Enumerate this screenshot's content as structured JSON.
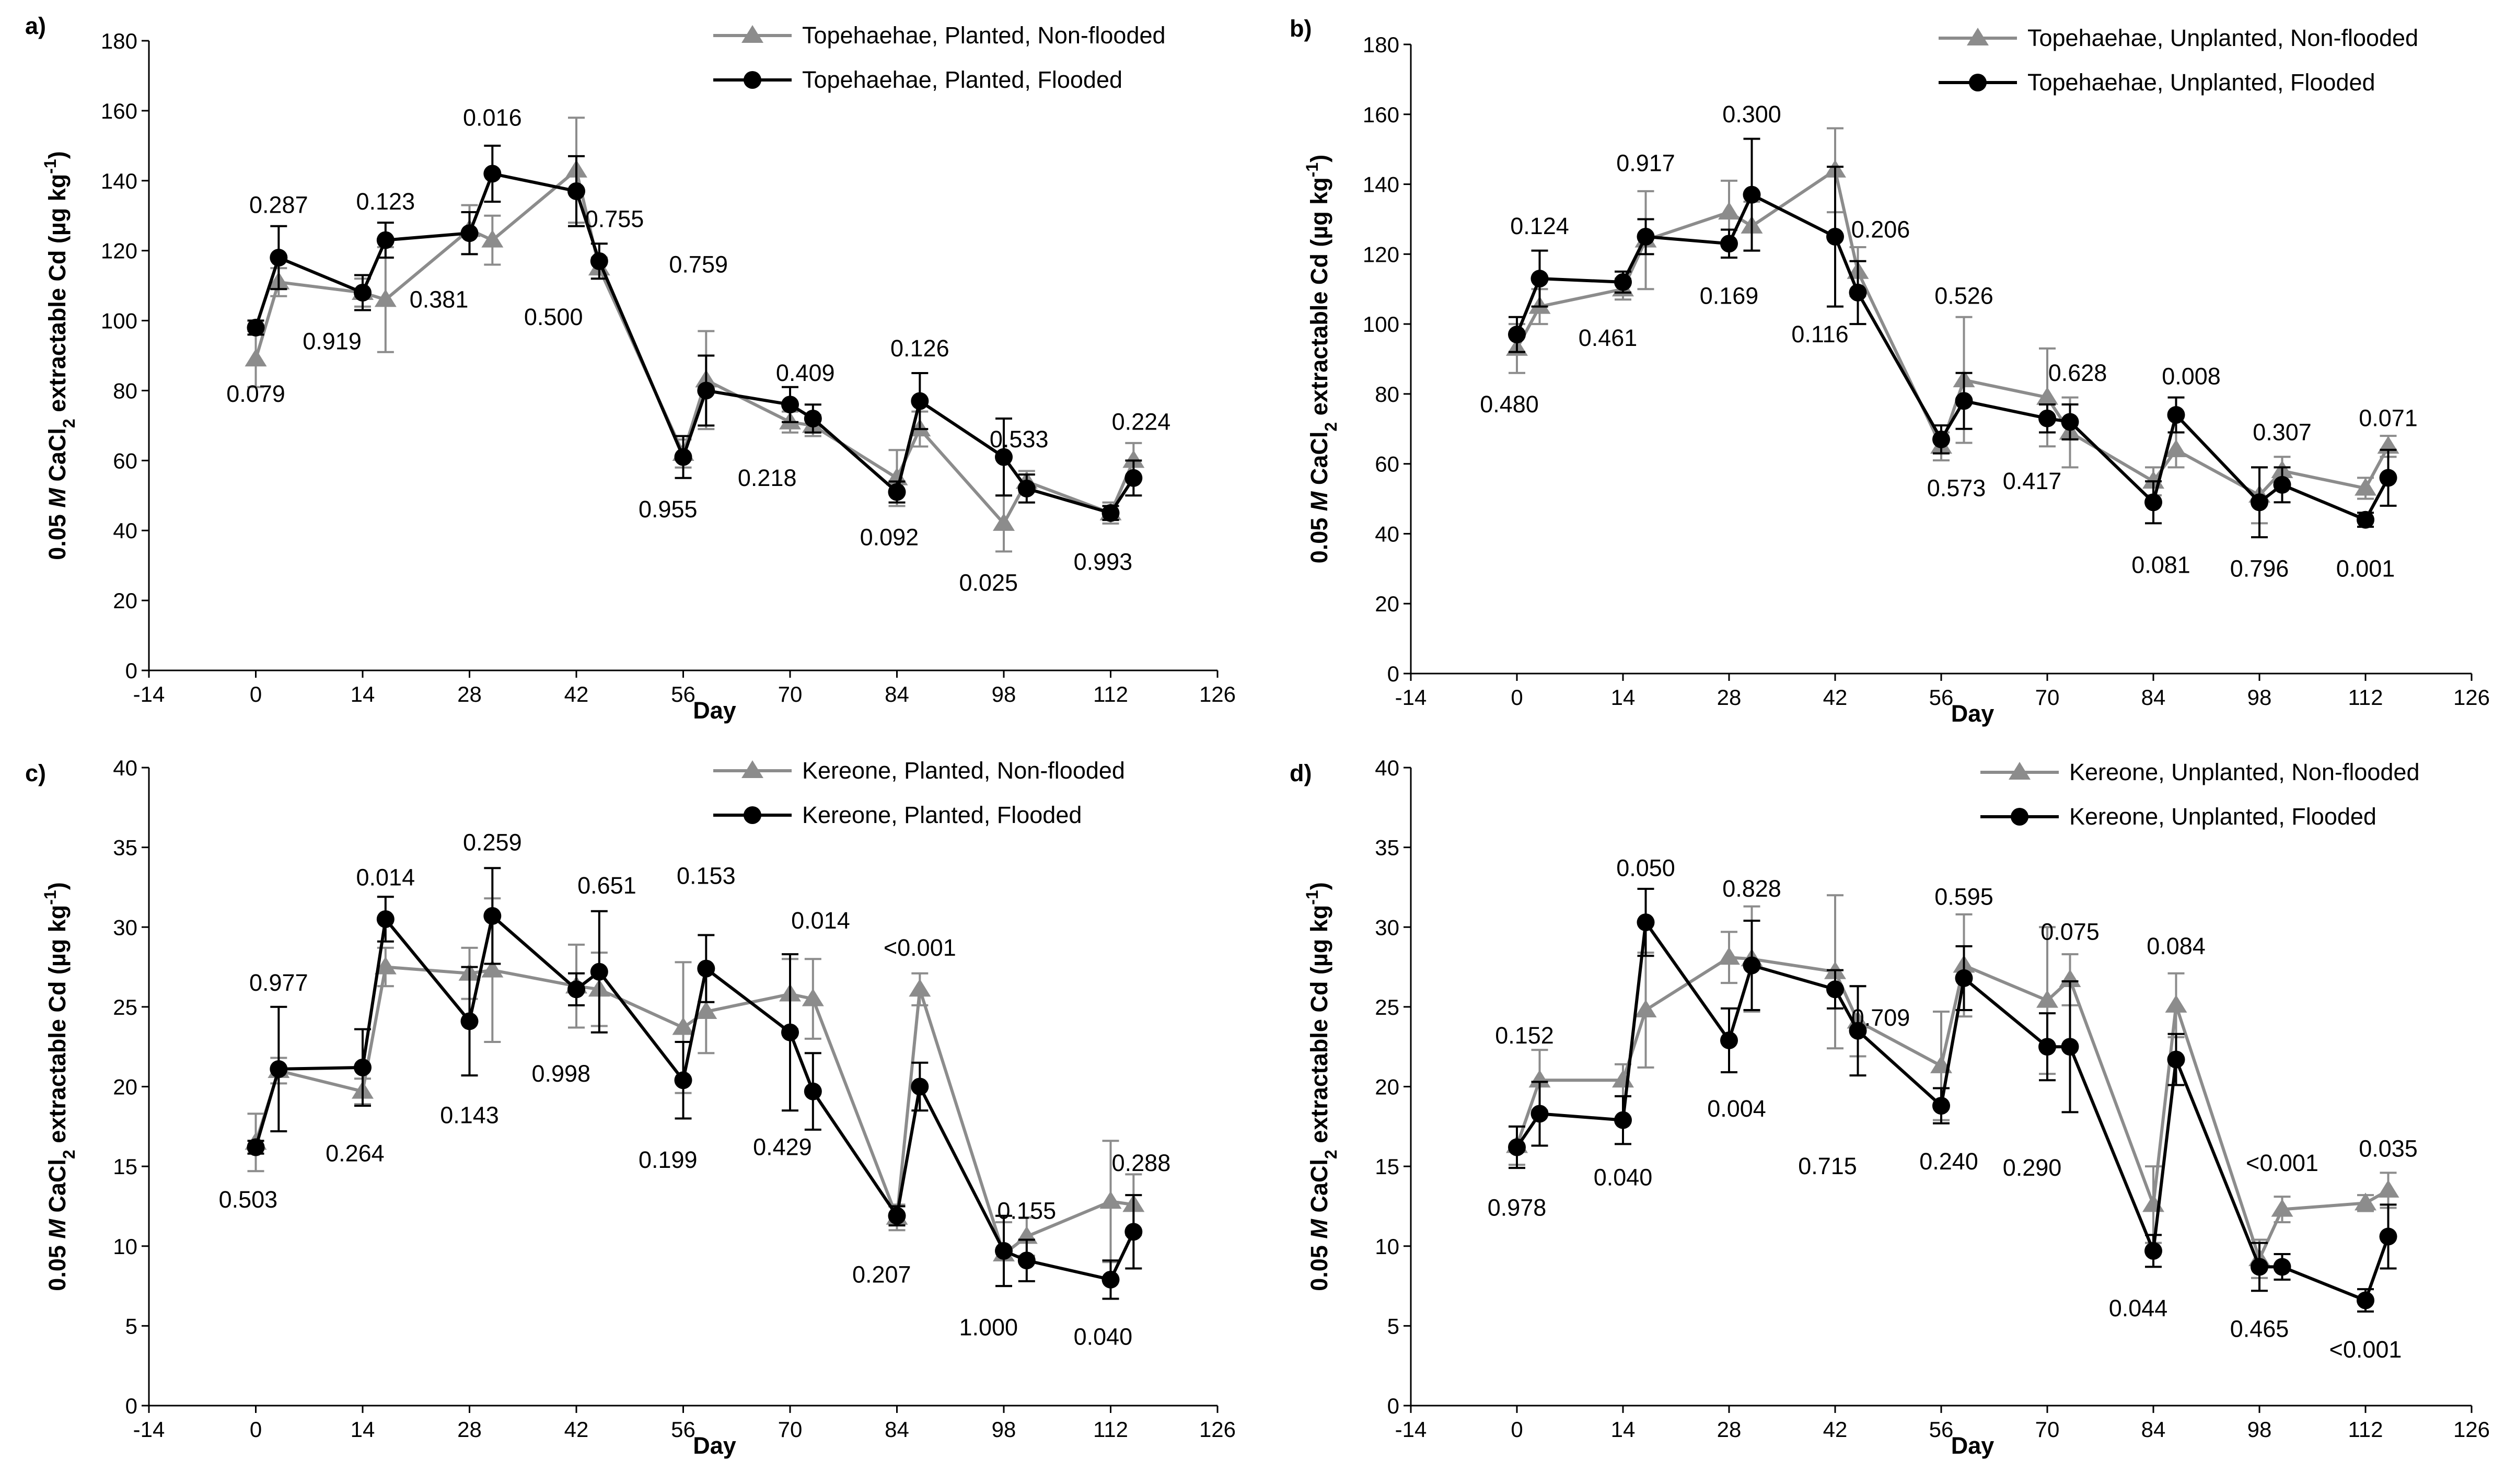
{
  "colors": {
    "non_flooded": "#8c8c8c",
    "flooded": "#000000",
    "axis": "#000000"
  },
  "chart_data": [
    {
      "type": "line",
      "panel_label": "a)",
      "xlabel": "Day",
      "ylabel_parts": [
        "0.05 ",
        "M",
        " CaCl",
        "2",
        " extractable Cd (µg kg",
        "-1",
        ")"
      ],
      "xlim": [
        -14,
        126
      ],
      "ylim": [
        0,
        180
      ],
      "xticks": [
        -14,
        0,
        14,
        28,
        42,
        56,
        70,
        84,
        98,
        112,
        126
      ],
      "yticks": [
        0,
        20,
        40,
        60,
        80,
        100,
        120,
        140,
        160,
        180
      ],
      "legend_position": "top-right",
      "series": [
        {
          "name": "Topehaehae, Planted, Non-flooded",
          "marker": "triangle",
          "color": "gray",
          "x": [
            0,
            3,
            14,
            17,
            28,
            31,
            42,
            45,
            56,
            59,
            70,
            73,
            84,
            87,
            98,
            101,
            112,
            115
          ],
          "y": [
            89,
            111,
            108,
            106,
            126,
            123,
            143,
            115,
            62,
            83,
            71,
            70,
            55,
            69,
            42,
            54,
            45,
            60
          ],
          "err": [
            8,
            4,
            4,
            15,
            7,
            7,
            15,
            3,
            4,
            14,
            3,
            3,
            8,
            5,
            8,
            3,
            3,
            5
          ]
        },
        {
          "name": "Topehaehae, Planted, Flooded",
          "marker": "circle",
          "color": "black",
          "x": [
            0,
            3,
            14,
            17,
            28,
            31,
            42,
            45,
            56,
            59,
            70,
            73,
            84,
            87,
            98,
            101,
            112,
            115
          ],
          "y": [
            98,
            118,
            108,
            123,
            125,
            142,
            137,
            117,
            61,
            80,
            76,
            72,
            51,
            77,
            61,
            52,
            45,
            55
          ],
          "err": [
            2,
            9,
            5,
            5,
            6,
            8,
            10,
            5,
            6,
            10,
            5,
            4,
            3,
            8,
            11,
            4,
            2,
            5
          ]
        }
      ],
      "p_values": [
        {
          "x": 0,
          "y": 79,
          "text": "0.079"
        },
        {
          "x": 3,
          "y": 133,
          "text": "0.287"
        },
        {
          "x": 10,
          "y": 94,
          "text": "0.919"
        },
        {
          "x": 17,
          "y": 134,
          "text": "0.123"
        },
        {
          "x": 24,
          "y": 106,
          "text": "0.381"
        },
        {
          "x": 31,
          "y": 158,
          "text": "0.016"
        },
        {
          "x": 39,
          "y": 101,
          "text": "0.500"
        },
        {
          "x": 47,
          "y": 129,
          "text": "0.755"
        },
        {
          "x": 54,
          "y": 46,
          "text": "0.955"
        },
        {
          "x": 58,
          "y": 116,
          "text": "0.759"
        },
        {
          "x": 67,
          "y": 55,
          "text": "0.218"
        },
        {
          "x": 72,
          "y": 85,
          "text": "0.409"
        },
        {
          "x": 83,
          "y": 38,
          "text": "0.092"
        },
        {
          "x": 87,
          "y": 92,
          "text": "0.126"
        },
        {
          "x": 96,
          "y": 25,
          "text": "0.025"
        },
        {
          "x": 100,
          "y": 66,
          "text": "0.533"
        },
        {
          "x": 111,
          "y": 31,
          "text": "0.993"
        },
        {
          "x": 116,
          "y": 71,
          "text": "0.224"
        }
      ]
    },
    {
      "type": "line",
      "panel_label": "b)",
      "xlabel": "Day",
      "ylabel_parts": [
        "0.05 ",
        "M",
        " CaCl",
        "2",
        " extractable Cd (µg kg",
        "-1",
        ")"
      ],
      "xlim": [
        -14,
        126
      ],
      "ylim": [
        0,
        180
      ],
      "xticks": [
        -14,
        0,
        14,
        28,
        42,
        56,
        70,
        84,
        98,
        112,
        126
      ],
      "yticks": [
        0,
        20,
        40,
        60,
        80,
        100,
        120,
        140,
        160,
        180
      ],
      "legend_position": "top-right",
      "series": [
        {
          "name": "Topehaehae, Unplanted, Non-flooded",
          "marker": "triangle",
          "color": "gray",
          "x": [
            0,
            3,
            14,
            17,
            28,
            31,
            42,
            45,
            56,
            59,
            70,
            73,
            84,
            87,
            98,
            101,
            112,
            115
          ],
          "y": [
            93,
            105,
            110,
            124,
            132,
            128,
            144,
            115,
            65,
            84,
            79,
            69,
            55,
            64,
            51,
            58,
            53,
            65
          ],
          "err": [
            7,
            5,
            3,
            14,
            9,
            7,
            12,
            7,
            4,
            18,
            14,
            10,
            4,
            5,
            8,
            4,
            3,
            3
          ]
        },
        {
          "name": "Topehaehae, Unplanted, Flooded",
          "marker": "circle",
          "color": "black",
          "x": [
            0,
            3,
            14,
            17,
            28,
            31,
            42,
            45,
            56,
            59,
            70,
            73,
            84,
            87,
            98,
            101,
            112,
            115
          ],
          "y": [
            97,
            113,
            112,
            125,
            123,
            137,
            125,
            109,
            67,
            78,
            73,
            72,
            49,
            74,
            49,
            54,
            44,
            56
          ],
          "err": [
            5,
            8,
            3,
            5,
            4,
            16,
            20,
            9,
            4,
            8,
            4,
            5,
            6,
            5,
            10,
            5,
            2,
            8
          ]
        }
      ],
      "p_values": [
        {
          "x": -1,
          "y": 77,
          "text": "0.480"
        },
        {
          "x": 3,
          "y": 128,
          "text": "0.124"
        },
        {
          "x": 12,
          "y": 96,
          "text": "0.461"
        },
        {
          "x": 17,
          "y": 146,
          "text": "0.917"
        },
        {
          "x": 28,
          "y": 108,
          "text": "0.169"
        },
        {
          "x": 31,
          "y": 160,
          "text": "0.300"
        },
        {
          "x": 40,
          "y": 97,
          "text": "0.116"
        },
        {
          "x": 48,
          "y": 127,
          "text": "0.206"
        },
        {
          "x": 58,
          "y": 53,
          "text": "0.573"
        },
        {
          "x": 59,
          "y": 108,
          "text": "0.526"
        },
        {
          "x": 68,
          "y": 55,
          "text": "0.417"
        },
        {
          "x": 74,
          "y": 86,
          "text": "0.628"
        },
        {
          "x": 85,
          "y": 31,
          "text": "0.081"
        },
        {
          "x": 89,
          "y": 85,
          "text": "0.008"
        },
        {
          "x": 98,
          "y": 30,
          "text": "0.796"
        },
        {
          "x": 101,
          "y": 69,
          "text": "0.307"
        },
        {
          "x": 112,
          "y": 30,
          "text": "0.001"
        },
        {
          "x": 115,
          "y": 73,
          "text": "0.071"
        }
      ]
    },
    {
      "type": "line",
      "panel_label": "c)",
      "xlabel": "Day",
      "ylabel_parts": [
        "0.05 ",
        "M",
        " CaCl",
        "2",
        " extractable Cd (µg kg",
        "-1",
        ")"
      ],
      "xlim": [
        -14,
        126
      ],
      "ylim": [
        0,
        40
      ],
      "xticks": [
        -14,
        0,
        14,
        28,
        42,
        56,
        70,
        84,
        98,
        112,
        126
      ],
      "yticks": [
        0,
        5,
        10,
        15,
        20,
        25,
        30,
        35,
        40
      ],
      "legend_position": "top-right",
      "series": [
        {
          "name": "Kereone, Planted, Non-flooded",
          "marker": "triangle",
          "color": "gray",
          "x": [
            0,
            3,
            14,
            17,
            28,
            31,
            42,
            45,
            56,
            59,
            70,
            73,
            84,
            87,
            98,
            101,
            112,
            115
          ],
          "y": [
            16.5,
            21,
            19.7,
            27.5,
            27.1,
            27.3,
            26.3,
            26.1,
            23.7,
            24.7,
            25.8,
            25.5,
            11.8,
            26.1,
            9.5,
            10.6,
            12.8,
            12.6
          ],
          "err": [
            1.8,
            0.8,
            0.8,
            1.2,
            1.6,
            4.5,
            2.6,
            2.3,
            4.1,
            2.6,
            2.2,
            2.5,
            0.8,
            1,
            2,
            1.2,
            3.8,
            1.9
          ]
        },
        {
          "name": "Kereone, Planted, Flooded",
          "marker": "circle",
          "color": "black",
          "x": [
            0,
            3,
            14,
            17,
            28,
            31,
            42,
            45,
            56,
            59,
            70,
            73,
            84,
            87,
            98,
            101,
            112,
            115
          ],
          "y": [
            16.2,
            21.1,
            21.2,
            30.5,
            24.1,
            30.7,
            26.1,
            27.2,
            20.4,
            27.4,
            23.4,
            19.7,
            11.9,
            20,
            9.7,
            9.1,
            7.9,
            10.9
          ],
          "err": [
            0.4,
            3.9,
            2.4,
            1.4,
            3.4,
            3,
            1,
            3.8,
            2.4,
            2.1,
            4.9,
            2.4,
            0.6,
            1.5,
            2.2,
            1.3,
            1.2,
            2.3
          ]
        }
      ],
      "p_values": [
        {
          "x": -1,
          "y": 12.9,
          "text": "0.503"
        },
        {
          "x": 3,
          "y": 26.5,
          "text": "0.977"
        },
        {
          "x": 13,
          "y": 15.8,
          "text": "0.264"
        },
        {
          "x": 17,
          "y": 33.1,
          "text": "0.014"
        },
        {
          "x": 28,
          "y": 18.2,
          "text": "0.143"
        },
        {
          "x": 31,
          "y": 35.3,
          "text": "0.259"
        },
        {
          "x": 40,
          "y": 20.8,
          "text": "0.998"
        },
        {
          "x": 46,
          "y": 32.6,
          "text": "0.651"
        },
        {
          "x": 54,
          "y": 15.4,
          "text": "0.199"
        },
        {
          "x": 59,
          "y": 33.2,
          "text": "0.153"
        },
        {
          "x": 69,
          "y": 16.2,
          "text": "0.429"
        },
        {
          "x": 74,
          "y": 30.4,
          "text": "0.014"
        },
        {
          "x": 82,
          "y": 8.2,
          "text": "0.207"
        },
        {
          "x": 87,
          "y": 28.7,
          "text": "<0.001"
        },
        {
          "x": 96,
          "y": 4.9,
          "text": "1.000"
        },
        {
          "x": 101,
          "y": 12.2,
          "text": "0.155"
        },
        {
          "x": 111,
          "y": 4.3,
          "text": "0.040"
        },
        {
          "x": 116,
          "y": 15.2,
          "text": "0.288"
        }
      ]
    },
    {
      "type": "line",
      "panel_label": "d)",
      "xlabel": "Day",
      "ylabel_parts": [
        "0.05 ",
        "M",
        " CaCl",
        "2",
        " extractable Cd (µg kg",
        "-1",
        ")"
      ],
      "xlim": [
        -14,
        126
      ],
      "ylim": [
        0,
        40
      ],
      "xticks": [
        -14,
        0,
        14,
        28,
        42,
        56,
        70,
        84,
        98,
        112,
        126
      ],
      "yticks": [
        0,
        5,
        10,
        15,
        20,
        25,
        30,
        35,
        40
      ],
      "legend_position": "top-right",
      "series": [
        {
          "name": "Kereone, Unplanted, Non-flooded",
          "marker": "triangle",
          "color": "gray",
          "x": [
            0,
            3,
            14,
            17,
            28,
            31,
            42,
            45,
            56,
            59,
            70,
            73,
            84,
            87,
            98,
            101,
            112,
            115
          ],
          "y": [
            16.3,
            20.4,
            20.4,
            24.8,
            28.1,
            28,
            27.2,
            24.1,
            21.3,
            27.6,
            25.4,
            26.7,
            12.6,
            25.1,
            9.2,
            12.3,
            12.7,
            13.5
          ],
          "err": [
            1.2,
            1.9,
            1,
            3.6,
            1.6,
            3.3,
            4.8,
            2.2,
            3.4,
            3.2,
            4.6,
            1.6,
            2.4,
            2,
            1.2,
            0.8,
            0.5,
            1.1
          ]
        },
        {
          "name": "Kereone, Unplanted, Flooded",
          "marker": "circle",
          "color": "black",
          "x": [
            0,
            3,
            14,
            17,
            28,
            31,
            42,
            45,
            56,
            59,
            70,
            73,
            84,
            87,
            98,
            101,
            112,
            115
          ],
          "y": [
            16.2,
            18.3,
            17.9,
            30.3,
            22.9,
            27.6,
            26.1,
            23.5,
            18.8,
            26.8,
            22.5,
            22.5,
            9.7,
            21.7,
            8.7,
            8.7,
            6.6,
            10.6
          ],
          "err": [
            1.3,
            2,
            1.5,
            2.1,
            2,
            2.8,
            1.2,
            2.8,
            1.1,
            2,
            2.1,
            4.1,
            1,
            1.6,
            1.5,
            0.8,
            0.7,
            2
          ]
        }
      ],
      "p_values": [
        {
          "x": 0,
          "y": 12.4,
          "text": "0.978"
        },
        {
          "x": 1,
          "y": 23.2,
          "text": "0.152"
        },
        {
          "x": 14,
          "y": 14.3,
          "text": "0.040"
        },
        {
          "x": 17,
          "y": 33.7,
          "text": "0.050"
        },
        {
          "x": 29,
          "y": 18.6,
          "text": "0.004"
        },
        {
          "x": 31,
          "y": 32.4,
          "text": "0.828"
        },
        {
          "x": 41,
          "y": 15,
          "text": "0.715"
        },
        {
          "x": 48,
          "y": 24.3,
          "text": "0.709"
        },
        {
          "x": 57,
          "y": 15.3,
          "text": "0.240"
        },
        {
          "x": 59,
          "y": 31.9,
          "text": "0.595"
        },
        {
          "x": 68,
          "y": 14.9,
          "text": "0.290"
        },
        {
          "x": 73,
          "y": 29.7,
          "text": "0.075"
        },
        {
          "x": 82,
          "y": 6.1,
          "text": "0.044"
        },
        {
          "x": 87,
          "y": 28.8,
          "text": "0.084"
        },
        {
          "x": 98,
          "y": 4.8,
          "text": "0.465"
        },
        {
          "x": 101,
          "y": 15.2,
          "text": "<0.001"
        },
        {
          "x": 112,
          "y": 3.5,
          "text": "<0.001"
        },
        {
          "x": 115,
          "y": 16.1,
          "text": "0.035"
        }
      ]
    }
  ]
}
